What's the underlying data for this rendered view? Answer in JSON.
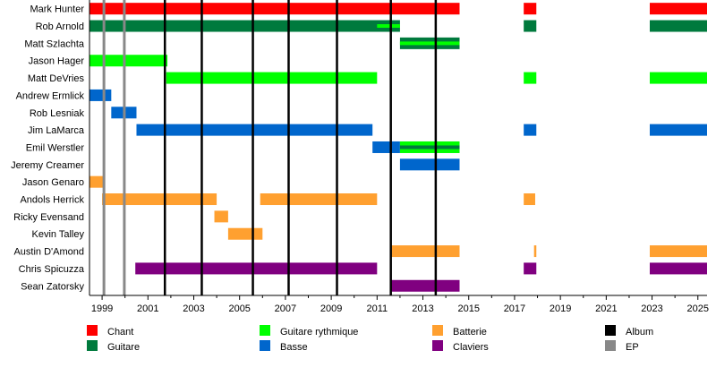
{
  "chart_data": {
    "type": "timeline",
    "title": "",
    "xlim": [
      1998.45,
      2025.4
    ],
    "x_ticks": [
      1999,
      2001,
      2003,
      2005,
      2007,
      2009,
      2011,
      2013,
      2015,
      2017,
      2019,
      2021,
      2023,
      2025
    ],
    "roles": {
      "chant": {
        "label": "Chant",
        "color": "#ff0000"
      },
      "guitare": {
        "label": "Guitare",
        "color": "#007a3d"
      },
      "rythmique": {
        "label": "Guitare rythmique",
        "color": "#00ff00"
      },
      "basse": {
        "label": "Basse",
        "color": "#0066cc"
      },
      "batterie": {
        "label": "Batterie",
        "color": "#ffa030"
      },
      "claviers": {
        "label": "Claviers",
        "color": "#800080"
      },
      "album": {
        "label": "Album",
        "color": "#000000"
      },
      "ep": {
        "label": "EP",
        "color": "#888888"
      }
    },
    "legend_order": [
      [
        "chant",
        "guitare"
      ],
      [
        "rythmique",
        "basse"
      ],
      [
        "batterie",
        "claviers"
      ],
      [
        "album",
        "ep"
      ]
    ],
    "members": [
      {
        "name": "Mark Hunter",
        "periods": [
          {
            "role": "chant",
            "from": 1998.45,
            "to": 2014.6
          },
          {
            "role": "chant",
            "from": 2017.4,
            "to": 2017.95
          },
          {
            "role": "chant",
            "from": 2022.9,
            "to": 2025.4
          }
        ]
      },
      {
        "name": "Rob Arnold",
        "periods": [
          {
            "role": "guitare",
            "from": 1998.45,
            "to": 2012.0
          },
          {
            "role": "rythmique",
            "from": 2011.0,
            "to": 2012.0,
            "stripe": true
          },
          {
            "role": "guitare",
            "from": 2017.4,
            "to": 2017.95
          },
          {
            "role": "guitare",
            "from": 2022.9,
            "to": 2025.4
          }
        ]
      },
      {
        "name": "Matt Szlachta",
        "periods": [
          {
            "role": "guitare",
            "from": 2012.0,
            "to": 2014.6
          },
          {
            "role": "rythmique",
            "from": 2012.0,
            "to": 2014.6,
            "stripe": true
          }
        ]
      },
      {
        "name": "Jason Hager",
        "periods": [
          {
            "role": "rythmique",
            "from": 1998.45,
            "to": 2001.85
          }
        ]
      },
      {
        "name": "Matt DeVries",
        "periods": [
          {
            "role": "rythmique",
            "from": 2001.8,
            "to": 2011.0
          },
          {
            "role": "rythmique",
            "from": 2017.4,
            "to": 2017.95
          },
          {
            "role": "rythmique",
            "from": 2022.9,
            "to": 2025.4
          }
        ]
      },
      {
        "name": "Andrew Ermlick",
        "periods": [
          {
            "role": "basse",
            "from": 1998.45,
            "to": 1999.4
          }
        ]
      },
      {
        "name": "Rob Lesniak",
        "periods": [
          {
            "role": "basse",
            "from": 1999.4,
            "to": 2000.5
          }
        ]
      },
      {
        "name": "Jim LaMarca",
        "periods": [
          {
            "role": "basse",
            "from": 2000.5,
            "to": 2010.8
          },
          {
            "role": "basse",
            "from": 2017.4,
            "to": 2017.95
          },
          {
            "role": "basse",
            "from": 2022.9,
            "to": 2025.4
          }
        ]
      },
      {
        "name": "Emil Werstler",
        "periods": [
          {
            "role": "basse",
            "from": 2010.8,
            "to": 2012.0
          },
          {
            "role": "rythmique",
            "from": 2012.0,
            "to": 2014.6
          },
          {
            "role": "guitare",
            "from": 2012.0,
            "to": 2014.6,
            "stripe": true
          }
        ]
      },
      {
        "name": "Jeremy Creamer",
        "periods": [
          {
            "role": "basse",
            "from": 2012.0,
            "to": 2014.6
          }
        ]
      },
      {
        "name": "Jason Genaro",
        "periods": [
          {
            "role": "batterie",
            "from": 1998.45,
            "to": 1999.05
          }
        ]
      },
      {
        "name": "Andols Herrick",
        "periods": [
          {
            "role": "batterie",
            "from": 1999.0,
            "to": 2004.0
          },
          {
            "role": "batterie",
            "from": 2005.9,
            "to": 2011.0
          },
          {
            "role": "batterie",
            "from": 2017.4,
            "to": 2017.9
          }
        ]
      },
      {
        "name": "Ricky Evensand",
        "periods": [
          {
            "role": "batterie",
            "from": 2003.9,
            "to": 2004.5
          }
        ]
      },
      {
        "name": "Kevin Talley",
        "periods": [
          {
            "role": "batterie",
            "from": 2004.5,
            "to": 2006.0
          }
        ]
      },
      {
        "name": "Austin D'Amond",
        "periods": [
          {
            "role": "batterie",
            "from": 2011.6,
            "to": 2014.6
          },
          {
            "role": "batterie",
            "from": 2017.85,
            "to": 2017.95
          },
          {
            "role": "batterie",
            "from": 2022.9,
            "to": 2025.4
          }
        ]
      },
      {
        "name": "Chris Spicuzza",
        "periods": [
          {
            "role": "claviers",
            "from": 2000.45,
            "to": 2011.0
          },
          {
            "role": "claviers",
            "from": 2017.4,
            "to": 2017.95
          },
          {
            "role": "claviers",
            "from": 2022.9,
            "to": 2025.4
          }
        ]
      },
      {
        "name": "Sean Zatorsky",
        "periods": [
          {
            "role": "claviers",
            "from": 2011.6,
            "to": 2014.6
          }
        ]
      }
    ],
    "albums": [
      2001.74,
      2003.35,
      2005.58,
      2007.14,
      2009.25,
      2011.6,
      2013.56
    ],
    "eps": [
      1999.08,
      1999.97
    ]
  }
}
